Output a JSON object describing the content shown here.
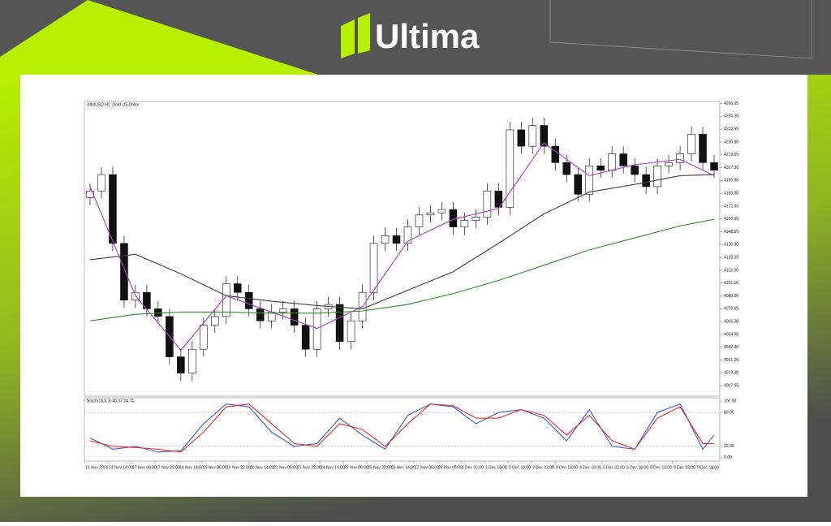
{
  "header": {
    "brand": "Ultima"
  },
  "chart_data": {
    "type": "candlestick",
    "title": "XAUUSD,H2: Gold US Dollar",
    "open": [
      4180,
      4186,
      4201,
      4138,
      4086,
      4093,
      4078,
      4071,
      4034,
      4019,
      4041,
      4063,
      4071,
      4101,
      4093,
      4078,
      4067,
      4075,
      4078,
      4063,
      4041,
      4078,
      4082,
      4048,
      4067,
      4093,
      4138,
      4145,
      4138,
      4153,
      4164,
      4166,
      4169,
      4153,
      4159,
      4162,
      4186,
      4171,
      4242,
      4227,
      4246,
      4227,
      4212,
      4201,
      4183,
      4209,
      4205,
      4220,
      4209,
      4201,
      4190,
      4209,
      4212,
      4220,
      4238,
      4212
    ],
    "high": [
      4193,
      4208,
      4208,
      4145,
      4100,
      4100,
      4085,
      4078,
      4041,
      4048,
      4070,
      4078,
      4108,
      4108,
      4100,
      4085,
      4082,
      4085,
      4085,
      4070,
      4085,
      4089,
      4089,
      4074,
      4100,
      4145,
      4152,
      4152,
      4160,
      4171,
      4173,
      4176,
      4176,
      4166,
      4169,
      4193,
      4193,
      4249,
      4249,
      4253,
      4253,
      4234,
      4219,
      4208,
      4216,
      4216,
      4227,
      4227,
      4216,
      4208,
      4216,
      4219,
      4227,
      4245,
      4245,
      4219
    ],
    "low": [
      4173,
      4179,
      4131,
      4079,
      4079,
      4071,
      4064,
      4027,
      4012,
      4012,
      4034,
      4056,
      4064,
      4086,
      4071,
      4060,
      4060,
      4068,
      4056,
      4034,
      4034,
      4071,
      4041,
      4041,
      4060,
      4086,
      4131,
      4131,
      4131,
      4146,
      4157,
      4159,
      4146,
      4146,
      4152,
      4155,
      4164,
      4164,
      4220,
      4220,
      4220,
      4205,
      4194,
      4176,
      4176,
      4198,
      4198,
      4202,
      4194,
      4183,
      4183,
      4202,
      4205,
      4213,
      4205,
      4198
    ],
    "close": [
      4186,
      4201,
      4138,
      4086,
      4093,
      4078,
      4071,
      4034,
      4019,
      4041,
      4063,
      4071,
      4101,
      4093,
      4078,
      4067,
      4075,
      4078,
      4063,
      4041,
      4078,
      4082,
      4048,
      4067,
      4093,
      4138,
      4145,
      4138,
      4153,
      4164,
      4166,
      4169,
      4153,
      4159,
      4162,
      4186,
      4171,
      4242,
      4227,
      4246,
      4227,
      4212,
      4201,
      4183,
      4209,
      4205,
      4220,
      4209,
      4201,
      4190,
      4209,
      4212,
      4220,
      4238,
      4212,
      4205
    ],
    "ylim": [
      3998,
      4268
    ],
    "yticks": [
      4007.55,
      {
        "value": 4019.3,
        "label": "4019.30"
      },
      4031.05,
      {
        "value": 4042.8,
        "label": "4042.80"
      },
      4054.55,
      {
        "value": 4066.3,
        "label": "4066.30"
      },
      4078.05,
      {
        "value": 4089.8,
        "label": "4089.80"
      },
      4101.55,
      {
        "value": 4113.3,
        "label": "4113.30"
      },
      4125.05,
      {
        "value": 4136.8,
        "label": "4136.80"
      },
      4148.55,
      {
        "value": 4160.3,
        "label": "4160.30"
      },
      4172.05,
      {
        "value": 4183.8,
        "label": "4183.80"
      },
      4195.55,
      {
        "value": 4207.3,
        "label": "4207.30"
      },
      4219.05,
      {
        "value": 4230.8,
        "label": "4230.80"
      },
      4242.55,
      {
        "value": 4254.3,
        "label": "4254.30"
      },
      4266.05
    ],
    "x_labels": [
      "13 Nov 2025",
      "14 Nov 14:00",
      "17 Nov 06:00",
      "17 Nov 22:00",
      "18 Nov 14:00",
      "19 Nov 06:00",
      "19 Nov 22:00",
      "20 Nov 14:00",
      "21 Nov 06:00",
      "21 Nov 22:00",
      "24 Nov 14:00",
      "25 Nov 06:00",
      "25 Nov 22:00",
      "26 Nov 14:00",
      "27 Nov 06:00",
      "28 Nov 06:00",
      "1 Dec 02:00",
      "1 Dec 18:00",
      "2 Dec 10:00",
      "3 Dec 02:00",
      "3 Dec 18:00",
      "4 Dec 10:00",
      "5 Dec 02:00",
      "5 Dec 18:00",
      "8 Dec 10:00",
      "9 Dec 02:00",
      "9 Dec 18:00"
    ],
    "lines": [
      {
        "color": "#b03cc8",
        "x": [
          0,
          4,
          8,
          12,
          16,
          20,
          24,
          28,
          32,
          36,
          40,
          44,
          48,
          52,
          55
        ],
        "values": [
          4190,
          4090,
          4040,
          4090,
          4075,
          4060,
          4080,
          4140,
          4160,
          4170,
          4230,
          4200,
          4210,
          4215,
          4200
        ]
      },
      {
        "color": "#404040",
        "x": [
          0,
          4,
          8,
          12,
          16,
          20,
          24,
          28,
          32,
          36,
          40,
          44,
          48,
          52,
          55
        ],
        "values": [
          4123,
          4128,
          4110,
          4090,
          4085,
          4081,
          4078,
          4095,
          4112,
          4138,
          4165,
          4185,
          4192,
          4200,
          4201
        ]
      },
      {
        "color": "#2e8b2e",
        "x": [
          0,
          4,
          8,
          12,
          16,
          20,
          24,
          28,
          32,
          36,
          40,
          44,
          48,
          52,
          55
        ],
        "values": [
          4067,
          4073,
          4075,
          4075,
          4074,
          4074,
          4076,
          4082,
          4092,
          4104,
          4118,
          4132,
          4143,
          4154,
          4160
        ]
      }
    ],
    "stochastic": {
      "title": "Stoch(13,3,3) 40.07 24.74",
      "ylim": [
        -6,
        106
      ],
      "yticks": [
        {
          "value": 100,
          "label": "100.00"
        },
        {
          "value": 80,
          "label": "80.00"
        },
        {
          "value": 20,
          "label": "20.00"
        },
        {
          "value": 0,
          "label": "0.00"
        }
      ],
      "series": [
        {
          "color": "#3b5bdb",
          "x": [
            0,
            2,
            4,
            6,
            8,
            10,
            12,
            14,
            16,
            18,
            20,
            22,
            24,
            26,
            28,
            30,
            32,
            34,
            36,
            38,
            40,
            42,
            44,
            46,
            48,
            50,
            52,
            54,
            55
          ],
          "values": [
            35,
            15,
            20,
            10,
            12,
            60,
            95,
            90,
            45,
            20,
            25,
            70,
            40,
            15,
            75,
            95,
            90,
            60,
            80,
            85,
            70,
            30,
            85,
            20,
            15,
            80,
            95,
            15,
            40
          ]
        },
        {
          "color": "#e03131",
          "x": [
            0,
            2,
            4,
            6,
            8,
            10,
            12,
            14,
            16,
            18,
            20,
            22,
            24,
            26,
            28,
            30,
            32,
            34,
            36,
            38,
            40,
            42,
            44,
            46,
            48,
            50,
            52,
            54,
            55
          ],
          "values": [
            30,
            20,
            18,
            15,
            10,
            45,
            90,
            95,
            60,
            25,
            20,
            60,
            50,
            20,
            60,
            95,
            92,
            70,
            70,
            85,
            75,
            40,
            75,
            30,
            15,
            70,
            90,
            25,
            25
          ]
        }
      ]
    }
  }
}
